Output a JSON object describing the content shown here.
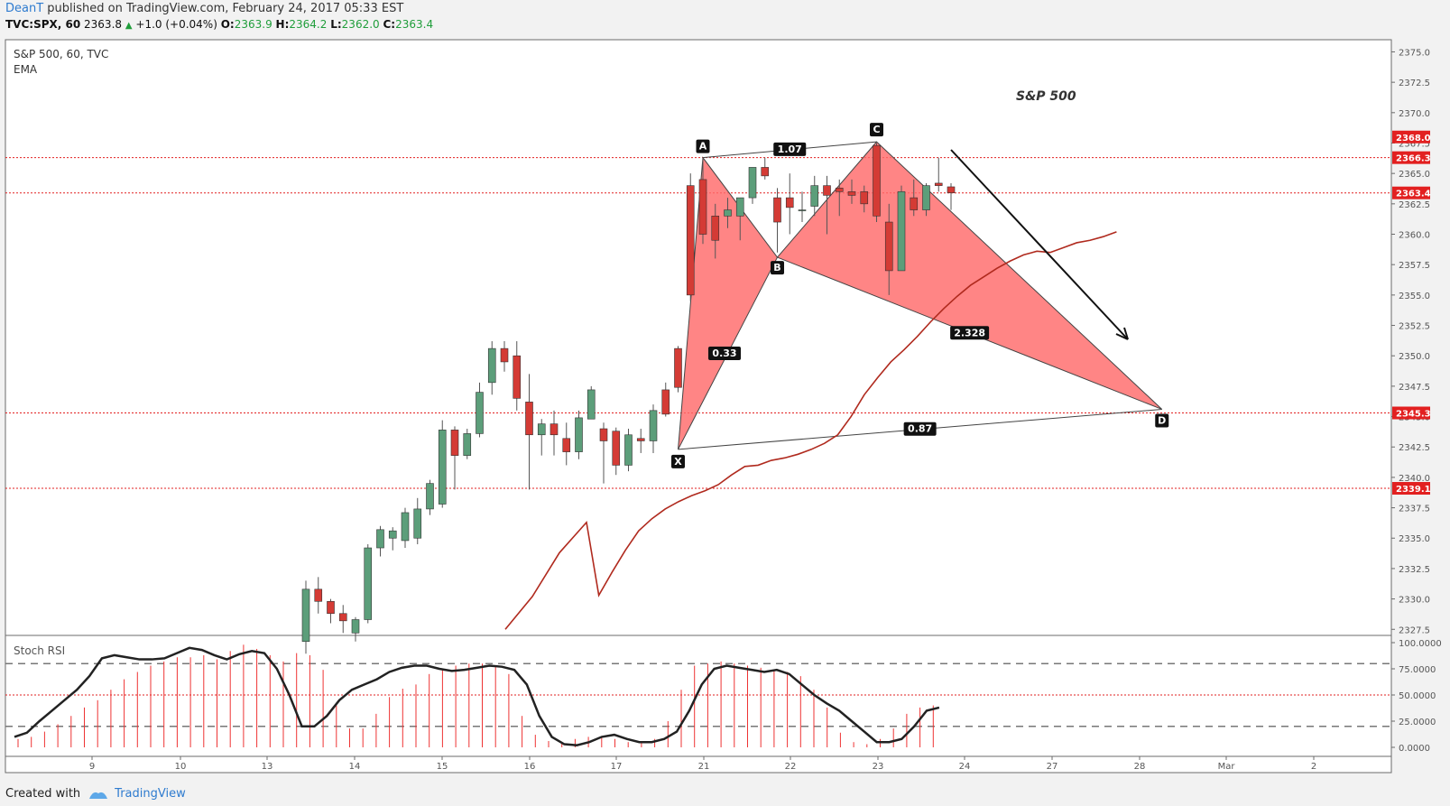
{
  "header": {
    "author": "DeanT",
    "published": "published on TradingView.com, February 24, 2017 05:33 EST"
  },
  "ticker": {
    "symbol": "TVC:SPX, 60",
    "last": "2363.8",
    "change": "+1.0 (+0.04%)",
    "o_label": "O:",
    "o": "2363.9",
    "h_label": "H:",
    "h": "2364.2",
    "l_label": "L:",
    "l": "2362.0",
    "c_label": "C:",
    "c": "2363.4"
  },
  "legend": {
    "title": "S&P 500, 60, TVC",
    "indicator": "EMA"
  },
  "annotation": "S&P 500",
  "stoch_label": "Stoch RSI",
  "footer": {
    "created": "Created with",
    "brand": "TradingView"
  },
  "colors": {
    "up": "#5c9e7a",
    "down": "#d43b35",
    "ema": "#b02a1e",
    "pattern": "#ff6a6a",
    "level": "#e22020",
    "brand": "#2e7bcf"
  },
  "chart_data": {
    "type": "candlestick",
    "y_range": [
      2327.0,
      2376.0
    ],
    "y_ticks": [
      "2375.0",
      "2372.5",
      "2370.0",
      "2367.5",
      "2365.0",
      "2362.5",
      "2360.0",
      "2357.5",
      "2355.0",
      "2352.5",
      "2350.0",
      "2347.5",
      "2345.0",
      "2342.5",
      "2340.0",
      "2337.5",
      "2335.0",
      "2332.5",
      "2330.0",
      "2327.5"
    ],
    "x_ticks": [
      "9",
      "10",
      "13",
      "14",
      "15",
      "16",
      "17",
      "21",
      "22",
      "23",
      "24",
      "27",
      "28",
      "Mar",
      "2"
    ],
    "levels": [
      {
        "value": 2368.0,
        "label": "2368.0",
        "line": false
      },
      {
        "value": 2366.3,
        "label": "2366.3",
        "line": true
      },
      {
        "value": 2363.4,
        "label": "2363.4",
        "line": true
      },
      {
        "value": 2345.3,
        "label": "2345.3",
        "line": true
      },
      {
        "value": 2339.1,
        "label": "2339.1",
        "line": true
      }
    ],
    "candles": [
      {
        "o": 2326.5,
        "h": 2331.5,
        "l": 2325.5,
        "c": 2330.8
      },
      {
        "o": 2330.8,
        "h": 2331.8,
        "l": 2328.8,
        "c": 2329.8
      },
      {
        "o": 2329.8,
        "h": 2330.0,
        "l": 2328.0,
        "c": 2328.8
      },
      {
        "o": 2328.8,
        "h": 2329.5,
        "l": 2327.2,
        "c": 2328.2
      },
      {
        "o": 2327.2,
        "h": 2328.5,
        "l": 2326.5,
        "c": 2328.3
      },
      {
        "o": 2328.3,
        "h": 2334.5,
        "l": 2328.0,
        "c": 2334.2
      },
      {
        "o": 2334.2,
        "h": 2336.0,
        "l": 2333.5,
        "c": 2335.7
      },
      {
        "o": 2335.0,
        "h": 2335.9,
        "l": 2334.0,
        "c": 2335.6
      },
      {
        "o": 2334.8,
        "h": 2337.5,
        "l": 2334.2,
        "c": 2337.1
      },
      {
        "o": 2335.0,
        "h": 2338.3,
        "l": 2334.5,
        "c": 2337.4
      },
      {
        "o": 2337.4,
        "h": 2339.8,
        "l": 2336.9,
        "c": 2339.5
      },
      {
        "o": 2337.8,
        "h": 2344.7,
        "l": 2337.5,
        "c": 2343.9
      },
      {
        "o": 2343.9,
        "h": 2344.2,
        "l": 2339.0,
        "c": 2341.8
      },
      {
        "o": 2341.8,
        "h": 2344.0,
        "l": 2341.5,
        "c": 2343.6
      },
      {
        "o": 2343.6,
        "h": 2347.8,
        "l": 2343.3,
        "c": 2347.0
      },
      {
        "o": 2347.8,
        "h": 2351.2,
        "l": 2346.8,
        "c": 2350.6
      },
      {
        "o": 2350.6,
        "h": 2351.2,
        "l": 2348.7,
        "c": 2349.5
      },
      {
        "o": 2350.0,
        "h": 2351.2,
        "l": 2345.5,
        "c": 2346.5
      },
      {
        "o": 2346.2,
        "h": 2348.5,
        "l": 2339.0,
        "c": 2343.5
      },
      {
        "o": 2343.5,
        "h": 2344.8,
        "l": 2341.8,
        "c": 2344.4
      },
      {
        "o": 2344.4,
        "h": 2345.5,
        "l": 2341.8,
        "c": 2343.5
      },
      {
        "o": 2343.2,
        "h": 2344.5,
        "l": 2341.0,
        "c": 2342.1
      },
      {
        "o": 2342.1,
        "h": 2345.5,
        "l": 2341.5,
        "c": 2344.9
      },
      {
        "o": 2344.8,
        "h": 2347.5,
        "l": 2344.8,
        "c": 2347.2
      },
      {
        "o": 2344.0,
        "h": 2344.5,
        "l": 2339.5,
        "c": 2343.0
      },
      {
        "o": 2343.8,
        "h": 2344.1,
        "l": 2340.2,
        "c": 2341.0
      },
      {
        "o": 2341.0,
        "h": 2344.0,
        "l": 2340.5,
        "c": 2343.5
      },
      {
        "o": 2343.2,
        "h": 2344.0,
        "l": 2342.0,
        "c": 2343.0
      },
      {
        "o": 2343.0,
        "h": 2346.0,
        "l": 2342.0,
        "c": 2345.5
      },
      {
        "o": 2347.2,
        "h": 2347.8,
        "l": 2345.0,
        "c": 2345.2
      },
      {
        "o": 2350.6,
        "h": 2350.8,
        "l": 2347.0,
        "c": 2347.4
      },
      {
        "o": 2364.0,
        "h": 2365.0,
        "l": 2354.5,
        "c": 2355.0
      },
      {
        "o": 2364.5,
        "h": 2366.3,
        "l": 2359.2,
        "c": 2360.0
      },
      {
        "o": 2361.5,
        "h": 2362.5,
        "l": 2358.0,
        "c": 2359.5
      },
      {
        "o": 2361.5,
        "h": 2363.0,
        "l": 2360.5,
        "c": 2362.0
      },
      {
        "o": 2361.5,
        "h": 2363.0,
        "l": 2359.5,
        "c": 2363.0
      },
      {
        "o": 2363.0,
        "h": 2365.5,
        "l": 2362.5,
        "c": 2365.5
      },
      {
        "o": 2365.5,
        "h": 2366.3,
        "l": 2364.5,
        "c": 2364.8
      },
      {
        "o": 2363.0,
        "h": 2363.8,
        "l": 2358.5,
        "c": 2361.0
      },
      {
        "o": 2363.0,
        "h": 2365.0,
        "l": 2360.0,
        "c": 2362.2
      },
      {
        "o": 2362.0,
        "h": 2363.5,
        "l": 2361.0,
        "c": 2362.0
      },
      {
        "o": 2362.3,
        "h": 2364.8,
        "l": 2361.5,
        "c": 2364.0
      },
      {
        "o": 2364.0,
        "h": 2364.8,
        "l": 2360.0,
        "c": 2363.2
      },
      {
        "o": 2363.8,
        "h": 2364.5,
        "l": 2361.5,
        "c": 2363.5
      },
      {
        "o": 2363.5,
        "h": 2364.5,
        "l": 2362.5,
        "c": 2363.2
      },
      {
        "o": 2363.5,
        "h": 2364.0,
        "l": 2361.8,
        "c": 2362.5
      },
      {
        "o": 2367.3,
        "h": 2367.5,
        "l": 2361.0,
        "c": 2361.5
      },
      {
        "o": 2361.0,
        "h": 2362.5,
        "l": 2355.0,
        "c": 2357.0
      },
      {
        "o": 2357.0,
        "h": 2364.0,
        "l": 2357.0,
        "c": 2363.5
      },
      {
        "o": 2363.0,
        "h": 2364.5,
        "l": 2361.5,
        "c": 2362.0
      },
      {
        "o": 2362.0,
        "h": 2364.2,
        "l": 2361.5,
        "c": 2364.0
      },
      {
        "o": 2364.2,
        "h": 2366.3,
        "l": 2363.5,
        "c": 2364.0
      },
      {
        "o": 2363.9,
        "h": 2364.2,
        "l": 2362.0,
        "c": 2363.4
      }
    ],
    "ema": [
      2326.0,
      2327.2,
      2328.6,
      2330.3,
      2332.2,
      2334.0,
      2335.6,
      2336.6,
      2337.4,
      2338.0,
      2338.5,
      2338.9,
      2339.4,
      2340.2,
      2340.9,
      2341.0,
      2341.4,
      2341.6,
      2341.9,
      2342.3,
      2342.8,
      2343.5,
      2345.0,
      2346.8,
      2348.2,
      2349.5,
      2350.5,
      2351.6,
      2352.8,
      2353.9,
      2354.9,
      2355.8,
      2356.5,
      2357.2,
      2357.8,
      2358.3,
      2358.6,
      2358.5,
      2358.9,
      2359.3,
      2359.5,
      2359.8,
      2360.2
    ],
    "ema_start_index": 0,
    "ema_x_dates_note": "",
    "pattern": {
      "points": [
        {
          "name": "X",
          "i": 30,
          "v": 2342.3
        },
        {
          "name": "A",
          "i": 32,
          "v": 2366.3
        },
        {
          "name": "B",
          "i": 38,
          "v": 2358.1
        },
        {
          "name": "C",
          "i": 46,
          "v": 2367.6
        },
        {
          "name": "D",
          "i": 69,
          "v": 2345.6
        }
      ],
      "ratios": [
        {
          "label": "1.07",
          "between": [
            "A",
            "C"
          ]
        },
        {
          "label": "0.33",
          "between": [
            "X",
            "B"
          ]
        },
        {
          "label": "2.328",
          "between": [
            "B",
            "D"
          ]
        },
        {
          "label": "0.87",
          "between": [
            "X",
            "D"
          ]
        }
      ]
    },
    "stoch_rsi": {
      "y_ticks": [
        "100.0000",
        "75.0000",
        "50.0000",
        "25.0000",
        "0.0000"
      ],
      "upper": 80,
      "lower": 20,
      "values": [
        10,
        14,
        25,
        35,
        45,
        55,
        68,
        85,
        88,
        86,
        84,
        84,
        85,
        90,
        95,
        93,
        88,
        84,
        89,
        92,
        90,
        75,
        50,
        20,
        20,
        30,
        45,
        55,
        60,
        65,
        72,
        76,
        78,
        78,
        75,
        73,
        74,
        76,
        78,
        77,
        74,
        60,
        30,
        10,
        3,
        2,
        5,
        10,
        12,
        8,
        5,
        5,
        8,
        15,
        35,
        60,
        75,
        78,
        76,
        74,
        72,
        74,
        70,
        60,
        50,
        42,
        35,
        25,
        15,
        5,
        5,
        8,
        20,
        35,
        38
      ]
    },
    "stoch_bars": [
      8,
      10,
      15,
      22,
      30,
      38,
      45,
      55,
      65,
      72,
      78,
      82,
      86,
      86,
      88,
      84,
      92,
      98,
      94,
      88,
      82,
      90,
      88,
      74,
      40,
      18,
      18,
      32,
      48,
      56,
      60,
      70,
      75,
      78,
      80,
      80,
      78,
      70,
      30,
      12,
      6,
      4,
      8,
      10,
      10,
      8,
      5,
      4,
      8,
      25,
      55,
      78,
      80,
      82,
      80,
      78,
      76,
      74,
      72,
      68,
      55,
      38,
      14,
      5,
      3,
      8,
      18,
      32,
      38,
      40
    ]
  }
}
